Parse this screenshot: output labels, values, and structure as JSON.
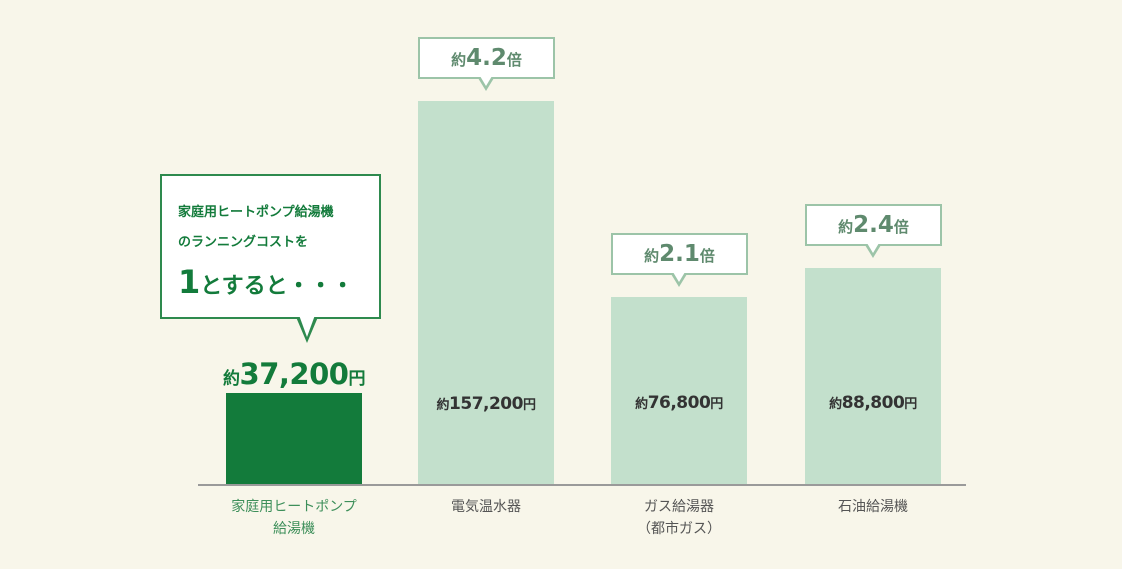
{
  "chart_data": {
    "type": "bar",
    "title": "",
    "xlabel": "",
    "ylabel": "",
    "ylim": [
      0,
      160000
    ],
    "grid": false,
    "categories": [
      [
        "家庭用ヒートポンプ",
        "給湯機"
      ],
      [
        "電気温水器"
      ],
      [
        "ガス給湯器",
        "（都市ガス）"
      ],
      [
        "石油給湯機"
      ]
    ],
    "values": [
      37200,
      157200,
      76800,
      88800
    ],
    "value_labels": [
      {
        "prefix": "約",
        "number": "37,200",
        "suffix": "円"
      },
      {
        "prefix": "約",
        "number": "157,200",
        "suffix": "円"
      },
      {
        "prefix": "約",
        "number": "76,800",
        "suffix": "円"
      },
      {
        "prefix": "約",
        "number": "88,800",
        "suffix": "円"
      }
    ],
    "ratio_labels": [
      null,
      {
        "prefix": "約",
        "number": "4.2",
        "suffix": "倍"
      },
      {
        "prefix": "約",
        "number": "2.1",
        "suffix": "倍"
      },
      {
        "prefix": "約",
        "number": "2.4",
        "suffix": "倍"
      }
    ],
    "colors": {
      "highlight": "#137b3b",
      "others": "#c3e0cc"
    },
    "annotation": {
      "line1": "家庭用ヒートポンプ給湯機",
      "line2": "のランニングコストを",
      "number": "1",
      "line3": "とすると・・・"
    }
  }
}
